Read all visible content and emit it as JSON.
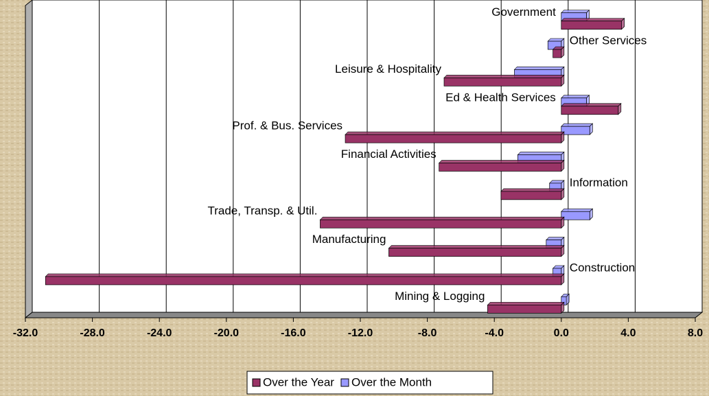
{
  "chart_data": {
    "type": "bar",
    "orientation": "horizontal",
    "categories": [
      "Mining & Logging",
      "Construction",
      "Manufacturing",
      "Trade, Transp. & Util.",
      "Information",
      "Financial Activities",
      "Prof. & Bus. Services",
      "Ed & Health Services",
      "Leisure & Hospitality",
      "Other Services",
      "Government"
    ],
    "series": [
      {
        "name": "Over the Year",
        "color": "#993366",
        "values": [
          -4.4,
          -30.8,
          -10.3,
          -14.4,
          -3.6,
          -7.3,
          -12.9,
          3.4,
          -7.0,
          -0.5,
          3.6
        ]
      },
      {
        "name": "Over the Month",
        "color": "#9999ff",
        "values": [
          0.3,
          -0.5,
          -0.9,
          1.7,
          -0.7,
          -2.6,
          1.7,
          1.5,
          -2.8,
          -0.8,
          1.5
        ]
      }
    ],
    "xlim": [
      -32,
      8
    ],
    "xticks": [
      {
        "value": -32,
        "label": "-32.0"
      },
      {
        "value": -28,
        "label": "-28.0"
      },
      {
        "value": -24,
        "label": "-24.0"
      },
      {
        "value": -20,
        "label": "-20.0"
      },
      {
        "value": -16,
        "label": "-16.0"
      },
      {
        "value": -12,
        "label": "-12.0"
      },
      {
        "value": -8,
        "label": "-8.0"
      },
      {
        "value": -4,
        "label": "-4.0"
      },
      {
        "value": 0,
        "label": "0.0"
      },
      {
        "value": 4,
        "label": "4.0"
      },
      {
        "value": 8,
        "label": "8.0"
      }
    ],
    "grid": true,
    "legend": "bottom"
  }
}
